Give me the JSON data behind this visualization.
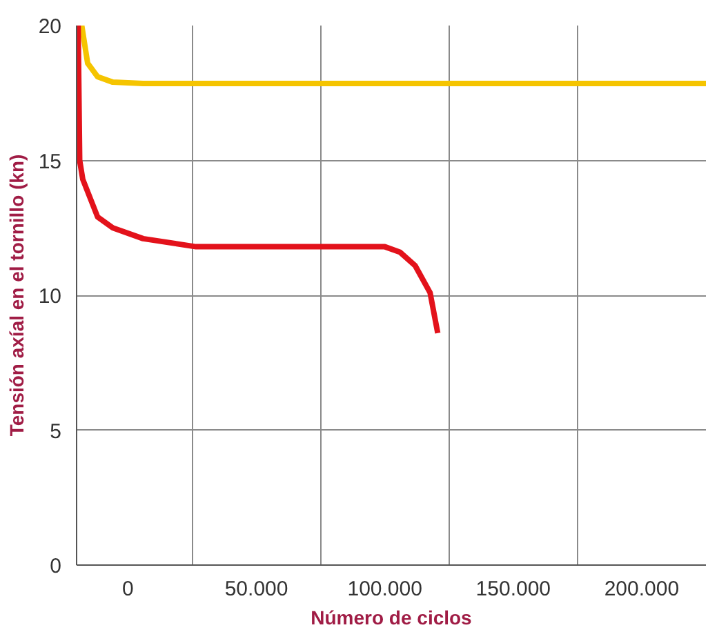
{
  "chart_data": {
    "type": "line",
    "xlabel": "Número de ciclos",
    "ylabel": "Tensión axíal en el tornillo (kn)",
    "xlim": [
      -20000,
      225000
    ],
    "ylim": [
      0,
      20
    ],
    "xticks": [
      {
        "value": 0,
        "label": "0"
      },
      {
        "value": 50000,
        "label": "50.000"
      },
      {
        "value": 100000,
        "label": "100.000"
      },
      {
        "value": 150000,
        "label": "150.000"
      },
      {
        "value": 200000,
        "label": "200.000"
      },
      {
        "value": 25000,
        "label": null
      },
      {
        "value": 75000,
        "label": null
      },
      {
        "value": 125000,
        "label": null
      },
      {
        "value": 175000,
        "label": null
      }
    ],
    "yticks": [
      0,
      5,
      10,
      15,
      20
    ],
    "grid": true,
    "line_style": "solid",
    "marker": "none",
    "series": [
      {
        "color": "#f5c400",
        "x": [
          -18000,
          -15700,
          -11800,
          -5900,
          5900,
          225000
        ],
        "values": [
          20,
          18.6,
          18.1,
          17.9,
          17.85,
          17.85
        ]
      },
      {
        "color": "#e3121b",
        "x": [
          -19400,
          -18800,
          -17600,
          -11800,
          -5900,
          5900,
          26500,
          58800,
          100000,
          105900,
          111800,
          117600,
          120600
        ],
        "values": [
          20,
          15,
          14.3,
          12.9,
          12.5,
          12.1,
          11.8,
          11.8,
          11.8,
          11.6,
          11.1,
          10.1,
          8.6
        ]
      }
    ]
  }
}
